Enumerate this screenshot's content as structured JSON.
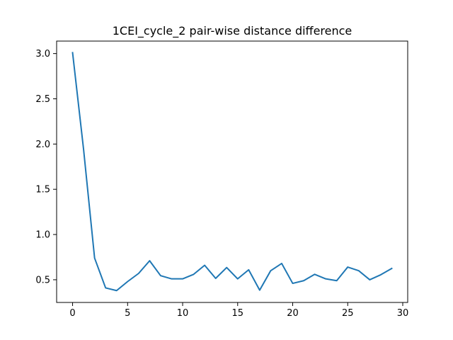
{
  "chart_data": {
    "type": "line",
    "title": "1CEI_cycle_2 pair-wise distance difference",
    "xlabel": "",
    "ylabel": "",
    "xlim": [
      -1.45,
      30.45
    ],
    "ylim": [
      0.249,
      3.138
    ],
    "x_ticks": [
      0,
      5,
      10,
      15,
      20,
      25,
      30
    ],
    "y_ticks": [
      0.5,
      1.0,
      1.5,
      2.0,
      2.5,
      3.0
    ],
    "x_tick_labels": [
      "0",
      "5",
      "10",
      "15",
      "20",
      "25",
      "30"
    ],
    "y_tick_labels": [
      "0.5",
      "1.0",
      "1.5",
      "2.0",
      "2.5",
      "3.0"
    ],
    "grid": false,
    "series": [
      {
        "color": "#1f77b4",
        "x": [
          0,
          1,
          2,
          3,
          4,
          5,
          6,
          7,
          8,
          9,
          10,
          11,
          12,
          13,
          14,
          15,
          16,
          17,
          18,
          19,
          20,
          21,
          22,
          23,
          24,
          25,
          26,
          27,
          28,
          29
        ],
        "values": [
          3.01,
          1.94,
          0.74,
          0.41,
          0.38,
          0.48,
          0.57,
          0.71,
          0.545,
          0.51,
          0.51,
          0.56,
          0.66,
          0.515,
          0.635,
          0.51,
          0.61,
          0.385,
          0.6,
          0.68,
          0.46,
          0.49,
          0.56,
          0.51,
          0.49,
          0.64,
          0.6,
          0.5,
          0.555,
          0.625
        ]
      }
    ]
  }
}
